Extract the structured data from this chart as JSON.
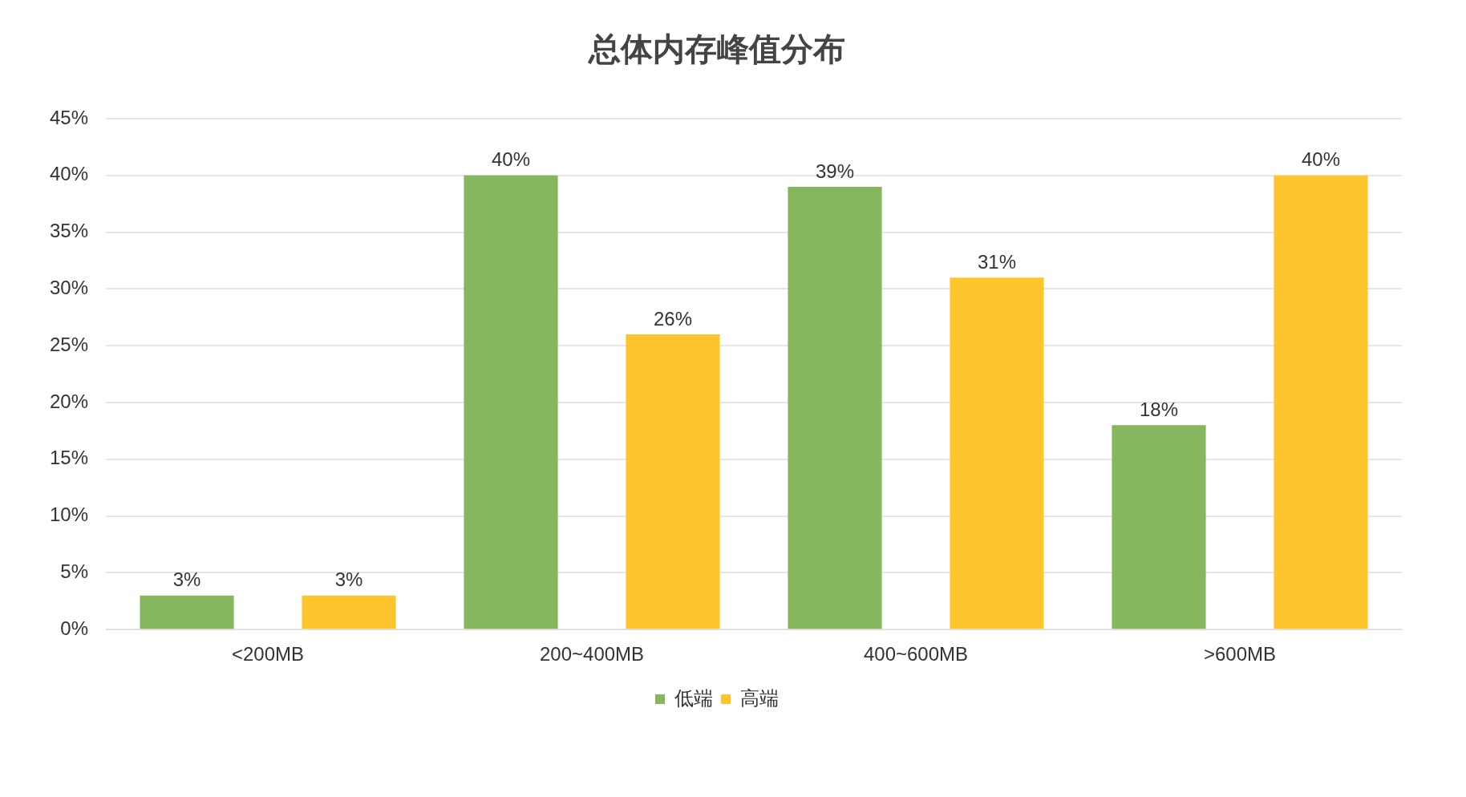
{
  "chart_data": {
    "type": "bar",
    "title": "总体内存峰值分布",
    "categories": [
      "<200MB",
      "200~400MB",
      "400~600MB",
      ">600MB"
    ],
    "series": [
      {
        "name": "低端",
        "color": "#86b75e",
        "values": [
          3,
          40,
          39,
          18
        ],
        "value_labels": [
          "3%",
          "40%",
          "39%",
          "18%"
        ]
      },
      {
        "name": "高端",
        "color": "#ffc52e",
        "values": [
          3,
          26,
          31,
          40
        ],
        "value_labels": [
          "3%",
          "26%",
          "31%",
          "40%"
        ]
      }
    ],
    "ylim": [
      0,
      45
    ],
    "yticks": [
      {
        "value": 0,
        "label": "0%"
      },
      {
        "value": 5,
        "label": "5%"
      },
      {
        "value": 10,
        "label": "10%"
      },
      {
        "value": 15,
        "label": "15%"
      },
      {
        "value": 20,
        "label": "20%"
      },
      {
        "value": 25,
        "label": "25%"
      },
      {
        "value": 30,
        "label": "30%"
      },
      {
        "value": 35,
        "label": "35%"
      },
      {
        "value": 40,
        "label": "40%"
      },
      {
        "value": 45,
        "label": "45%"
      }
    ],
    "grid": "y",
    "legend": "bottom"
  }
}
